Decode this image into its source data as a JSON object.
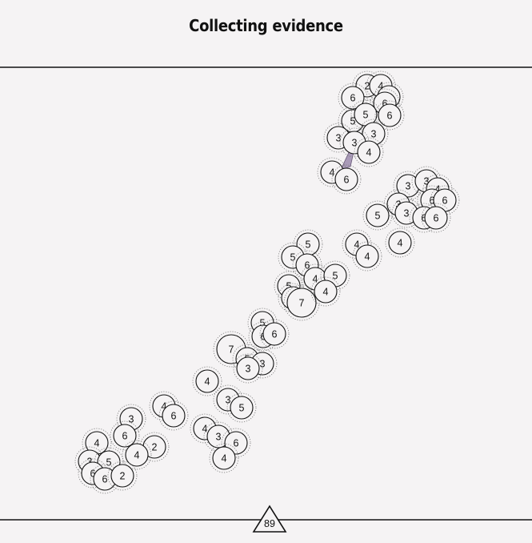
{
  "title": "Collecting evidence",
  "page_number": "89",
  "colors": {
    "background": "#f5f3f4",
    "ink": "#111111",
    "highlight": "#a99ab8"
  },
  "tokens": [
    "2",
    "4",
    "4",
    "6",
    "6",
    "5",
    "5",
    "6",
    "3",
    "3",
    "3",
    "4",
    "4",
    "6",
    "3",
    "3",
    "4",
    "6",
    "6",
    "3",
    "3",
    "6",
    "6",
    "5",
    "4",
    "4",
    "4",
    "5",
    "5",
    "6",
    "4",
    "5",
    "5",
    "4",
    "7",
    "4",
    "5",
    "6",
    "6",
    "7",
    "5",
    "3",
    "3",
    "4",
    "3",
    "5",
    "4",
    "6",
    "3",
    "2",
    "6",
    "4",
    "4",
    "3",
    "5",
    "6",
    "6",
    "2",
    "4",
    "3",
    "6",
    "4"
  ]
}
